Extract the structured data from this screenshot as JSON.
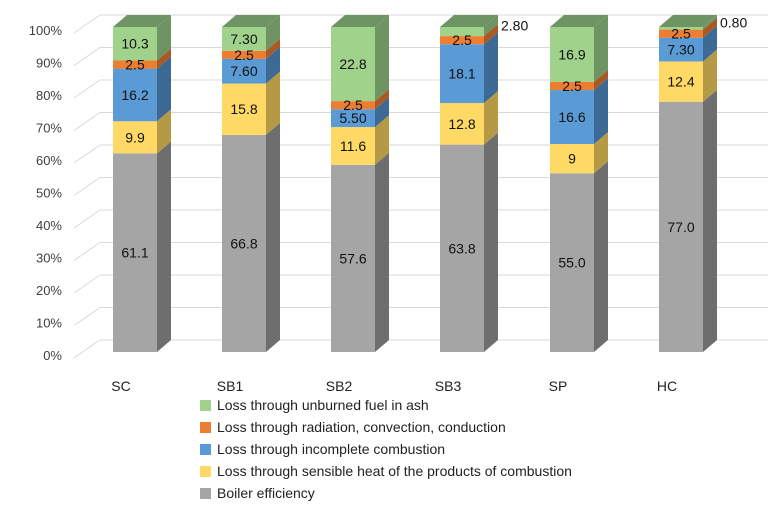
{
  "chart_data": {
    "type": "bar",
    "stacked": true,
    "style": "3d-column",
    "categories": [
      "SC",
      "SB1",
      "SB2",
      "SB3",
      "SP",
      "HC"
    ],
    "ylim": [
      0,
      100
    ],
    "yticks": [
      "0%",
      "10%",
      "20%",
      "30%",
      "40%",
      "50%",
      "60%",
      "70%",
      "80%",
      "90%",
      "100%"
    ],
    "grid": true,
    "legend_position": "bottom",
    "series": [
      {
        "name": "Boiler efficiency",
        "color": "#A5A5A5",
        "side": "#6E6E6E",
        "values": [
          61.1,
          66.8,
          57.6,
          63.8,
          55.0,
          77.0
        ],
        "labels": [
          "61.1",
          "66.8",
          "57.6",
          "63.8",
          "55.0",
          "77.0"
        ]
      },
      {
        "name": "Loss through sensible heat of the products of combustion",
        "color": "#FFD966",
        "side": "#B59A45",
        "values": [
          9.9,
          15.8,
          11.6,
          12.8,
          9,
          12.4
        ],
        "labels": [
          "9.9",
          "15.8",
          "11.6",
          "12.8",
          "9",
          "12.4"
        ]
      },
      {
        "name": "Loss through incomplete combustion",
        "color": "#5B9BD5",
        "side": "#3D6A94",
        "values": [
          16.2,
          7.6,
          5.5,
          18.1,
          16.6,
          7.3
        ],
        "labels": [
          "16.2",
          "7.60",
          "5.50",
          "18.1",
          "16.6",
          "7.30"
        ]
      },
      {
        "name": "Loss through radiation, convection, conduction",
        "color": "#ED7D31",
        "side": "#A95A24",
        "values": [
          2.5,
          2.5,
          2.5,
          2.5,
          2.5,
          2.5
        ],
        "labels": [
          "2.5",
          "2.5",
          "2.5",
          "2.5",
          "2.5",
          "2.5"
        ]
      },
      {
        "name": "Loss through unburned fuel in ash",
        "color": "#A1D28C",
        "side": "#6F9463",
        "values": [
          10.3,
          7.3,
          22.8,
          2.8,
          16.9,
          0.8
        ],
        "labels": [
          "10.3",
          "7.30",
          "22.8",
          "2.80",
          "16.9",
          "0.80"
        ]
      }
    ]
  }
}
